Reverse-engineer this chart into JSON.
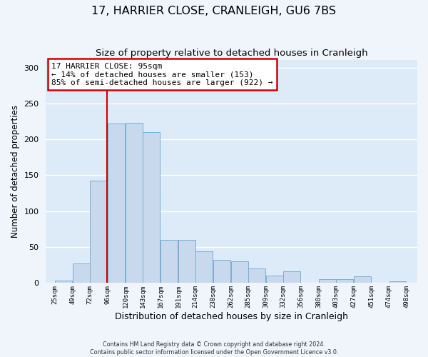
{
  "title": "17, HARRIER CLOSE, CRANLEIGH, GU6 7BS",
  "subtitle": "Size of property relative to detached houses in Cranleigh",
  "xlabel": "Distribution of detached houses by size in Cranleigh",
  "ylabel": "Number of detached properties",
  "bar_color": "#c8d9ee",
  "bar_edge_color": "#7aaed4",
  "background_color": "#ddeaf7",
  "fig_background": "#f0f5fc",
  "grid_color": "#ffffff",
  "vline_x": 95,
  "vline_color": "#cc0000",
  "annotation_title": "17 HARRIER CLOSE: 95sqm",
  "annotation_line1": "← 14% of detached houses are smaller (153)",
  "annotation_line2": "85% of semi-detached houses are larger (922) →",
  "annotation_box_color": "#ffffff",
  "annotation_box_edge": "#cc0000",
  "bins_left": [
    25,
    49,
    72,
    96,
    120,
    143,
    167,
    191,
    214,
    238,
    262,
    285,
    309,
    332,
    356,
    380,
    403,
    427,
    451,
    474
  ],
  "bin_width": 23,
  "bar_heights": [
    3,
    27,
    143,
    222,
    223,
    210,
    60,
    60,
    44,
    32,
    30,
    20,
    10,
    16,
    0,
    5,
    5,
    9,
    0,
    2
  ],
  "xtick_labels": [
    "25sqm",
    "49sqm",
    "72sqm",
    "96sqm",
    "120sqm",
    "143sqm",
    "167sqm",
    "191sqm",
    "214sqm",
    "238sqm",
    "262sqm",
    "285sqm",
    "309sqm",
    "332sqm",
    "356sqm",
    "380sqm",
    "403sqm",
    "427sqm",
    "451sqm",
    "474sqm",
    "498sqm"
  ],
  "xtick_positions": [
    25,
    49,
    72,
    96,
    120,
    143,
    167,
    191,
    214,
    238,
    262,
    285,
    309,
    332,
    356,
    380,
    403,
    427,
    451,
    474,
    498
  ],
  "ylim": [
    0,
    310
  ],
  "xlim": [
    13,
    512
  ],
  "yticks": [
    0,
    50,
    100,
    150,
    200,
    250,
    300
  ],
  "footer_line1": "Contains HM Land Registry data © Crown copyright and database right 2024.",
  "footer_line2": "Contains public sector information licensed under the Open Government Licence v3.0."
}
